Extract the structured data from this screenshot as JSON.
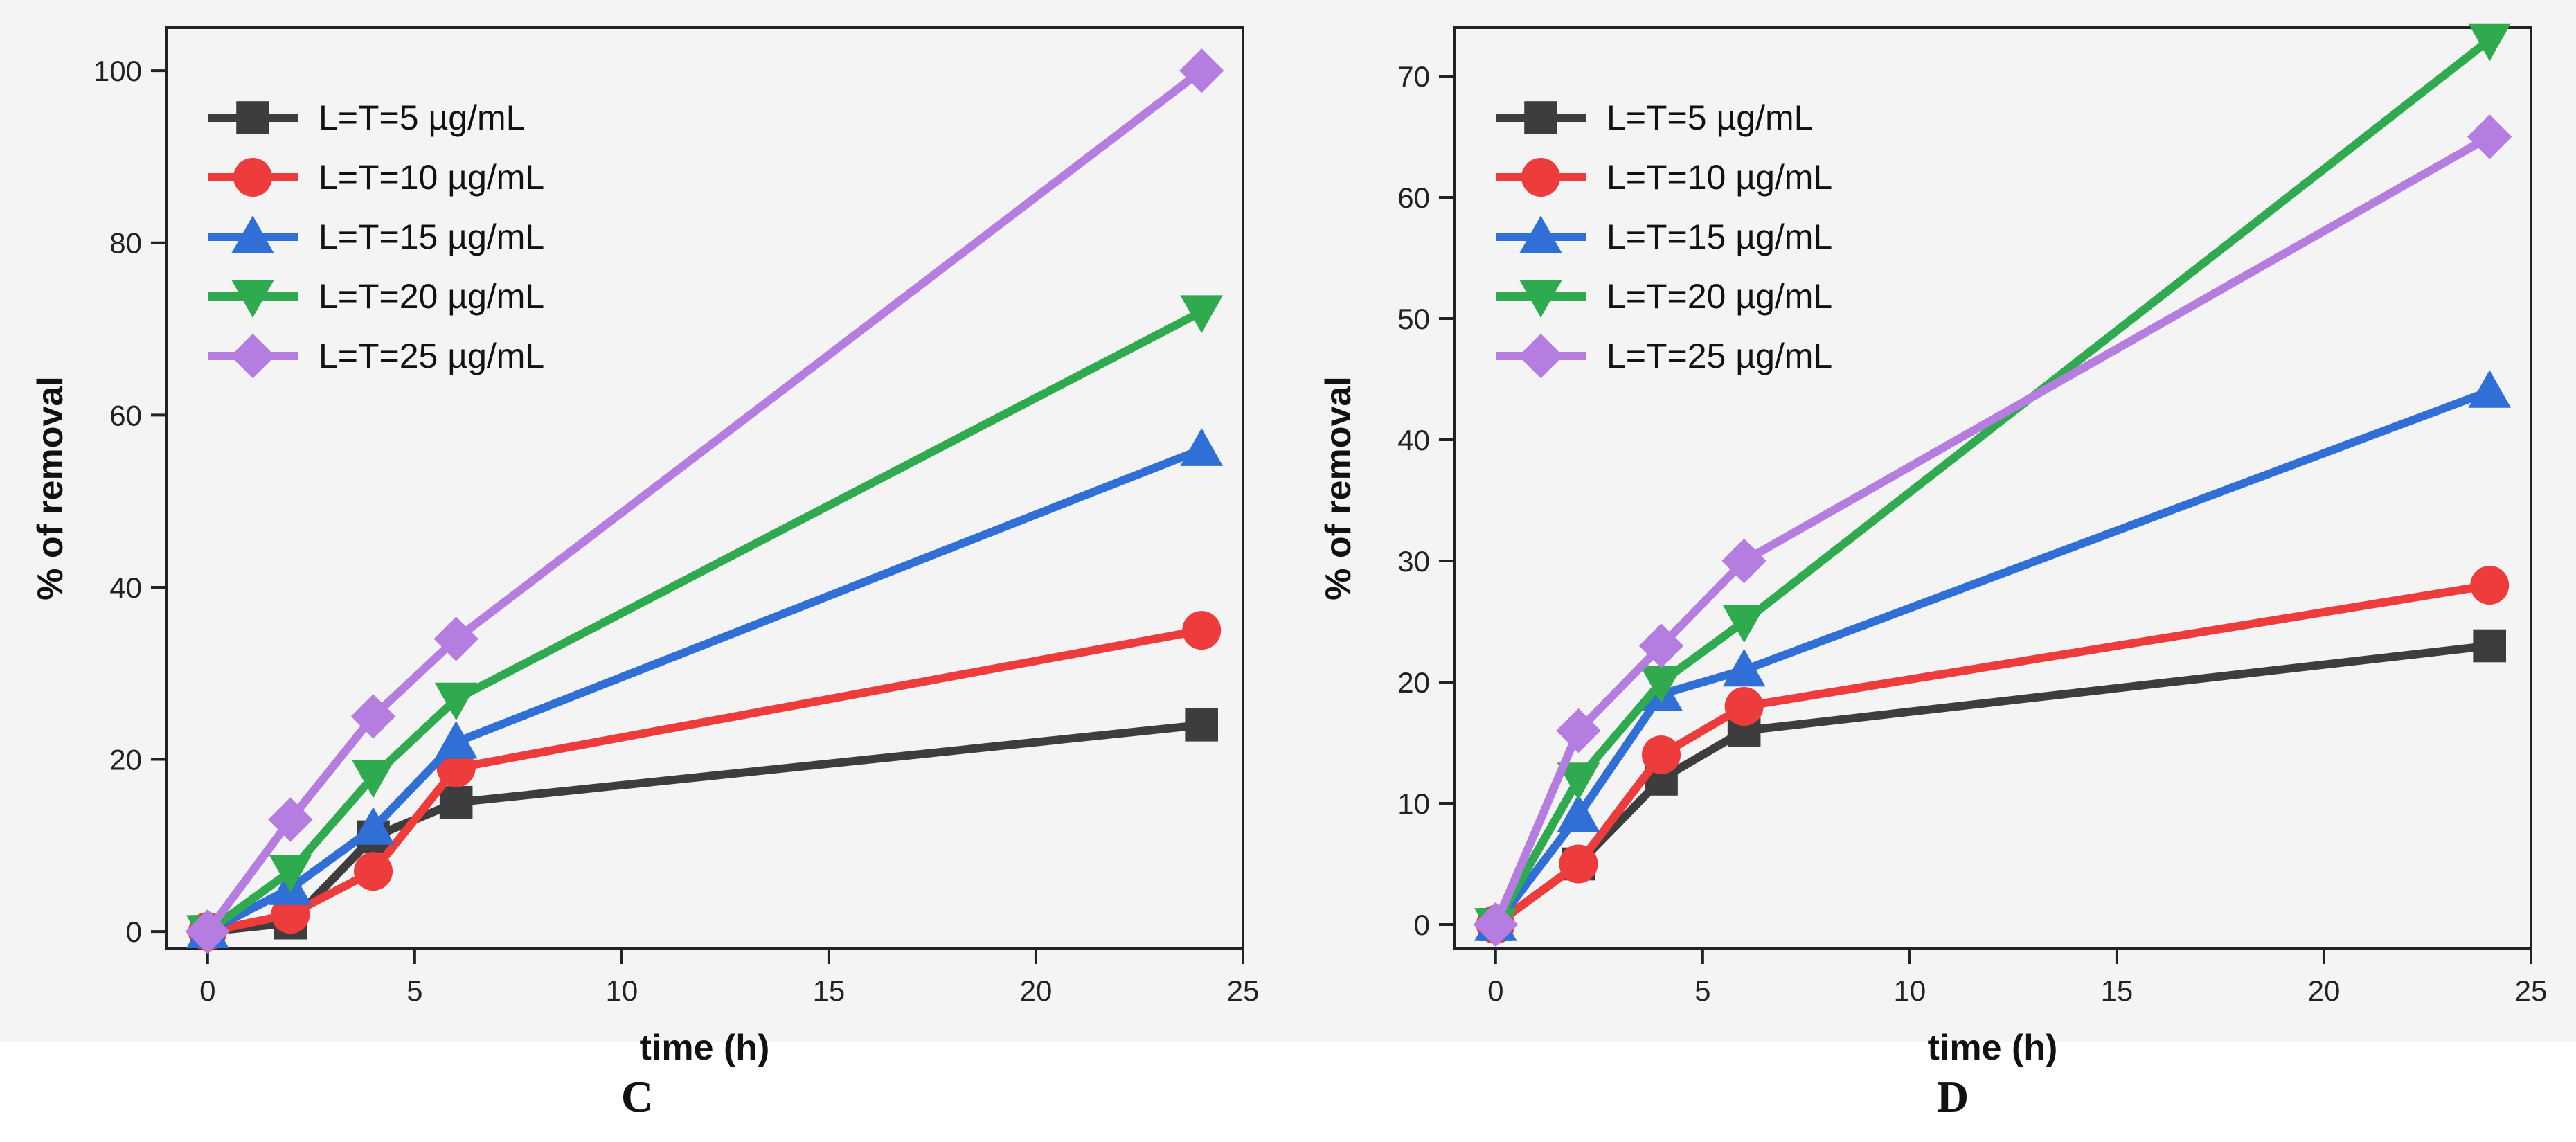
{
  "chart_data": [
    {
      "panel": "C",
      "type": "line",
      "xlabel": "time (h)",
      "ylabel": "% of removal",
      "xlim": [
        -1,
        25
      ],
      "ylim": [
        -2,
        105
      ],
      "xticks": [
        0,
        5,
        10,
        15,
        20,
        25
      ],
      "yticks": [
        0,
        20,
        40,
        60,
        80,
        100
      ],
      "legend_position": "top-left",
      "x": [
        0,
        2,
        4,
        6,
        24
      ],
      "series": [
        {
          "name": "L=T=5 µg/mL",
          "color": "#3d3d3d",
          "marker": "square",
          "values": [
            0,
            1,
            11,
            15,
            24
          ]
        },
        {
          "name": "L=T=10 µg/mL",
          "color": "#ee3b3b",
          "marker": "circle",
          "values": [
            0,
            2,
            7,
            19,
            35
          ]
        },
        {
          "name": "L=T=15 µg/mL",
          "color": "#2f6fd6",
          "marker": "triangle-up",
          "values": [
            0,
            5,
            12,
            22,
            56
          ]
        },
        {
          "name": "L=T=20 µg/mL",
          "color": "#2faa4f",
          "marker": "triangle-down",
          "values": [
            0,
            7,
            18,
            27,
            72
          ]
        },
        {
          "name": "L=T=25 µg/mL",
          "color": "#b57de0",
          "marker": "diamond",
          "values": [
            0,
            13,
            25,
            34,
            100
          ]
        }
      ]
    },
    {
      "panel": "D",
      "type": "line",
      "xlabel": "time (h)",
      "ylabel": "% of removal",
      "xlim": [
        -1,
        25
      ],
      "ylim": [
        -2,
        74
      ],
      "xticks": [
        0,
        5,
        10,
        15,
        20,
        25
      ],
      "yticks": [
        0,
        10,
        20,
        30,
        40,
        50,
        60,
        70
      ],
      "legend_position": "top-left",
      "x": [
        0,
        2,
        4,
        6,
        24
      ],
      "series": [
        {
          "name": "L=T=5 µg/mL",
          "color": "#3d3d3d",
          "marker": "square",
          "values": [
            0,
            5,
            12,
            16,
            23
          ]
        },
        {
          "name": "L=T=10 µg/mL",
          "color": "#ee3b3b",
          "marker": "circle",
          "values": [
            0,
            5,
            14,
            18,
            28
          ]
        },
        {
          "name": "L=T=15 µg/mL",
          "color": "#2f6fd6",
          "marker": "triangle-up",
          "values": [
            0,
            9,
            19,
            21,
            44
          ]
        },
        {
          "name": "L=T=20 µg/mL",
          "color": "#2faa4f",
          "marker": "triangle-down",
          "values": [
            0,
            12,
            20,
            25,
            73
          ]
        },
        {
          "name": "L=T=25 µg/mL",
          "color": "#b57de0",
          "marker": "diamond",
          "values": [
            0,
            16,
            23,
            30,
            65
          ]
        }
      ]
    }
  ]
}
